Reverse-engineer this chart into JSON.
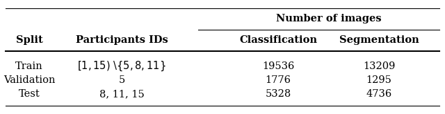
{
  "title_main": "Number of images",
  "col_headers_left": [
    "Split",
    "Participants IDs"
  ],
  "col_headers_right": [
    "Classification",
    "Segmentation"
  ],
  "rows": [
    [
      "Train",
      "[1,15) $\\setminus\\{$5, 8, 11$\\}$",
      "19536",
      "13209"
    ],
    [
      "Validation",
      "5",
      "1776",
      "1295"
    ],
    [
      "Test",
      "8, 11, 15",
      "5328",
      "4736"
    ]
  ],
  "background_color": "#ffffff",
  "text_color": "#000000",
  "font_size": 10.5
}
